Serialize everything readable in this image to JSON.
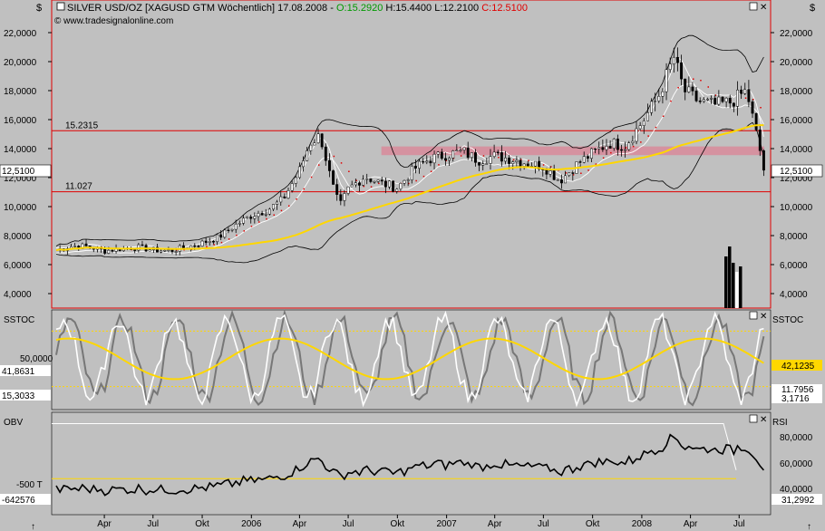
{
  "header": {
    "symbol": "SILVER USD/OZ [XAGUSD GTM",
    "period": "Wöchentlich]",
    "date": "17.08.2008",
    "open": "O:15.2920",
    "high": "H:15.4400",
    "low": "L:12.2100",
    "close": "C:12.5100",
    "copyright": "© www.tradesignalonline.com",
    "currency_left": "$",
    "currency_right": "$"
  },
  "colors": {
    "background": "#c0c0c0",
    "price_line": "#ffd700",
    "level_line": "#e00000",
    "resistance_zone": "#d88a9a",
    "open_value": "#009900",
    "close_value": "#e00000",
    "band": "#000000",
    "white_series": "#ffffff"
  },
  "chart_data": [
    {
      "type": "candlestick",
      "name": "price",
      "y_ticks": [
        "22,0000",
        "20,0000",
        "18,0000",
        "16,0000",
        "14,0000",
        "12,0000",
        "10,0000",
        "8,0000",
        "6,0000",
        "4,0000"
      ],
      "ylim": [
        3000,
        23000
      ],
      "current_value_label": "12,5100",
      "levels": [
        {
          "label": "15.2315",
          "value": 15.2315
        },
        {
          "label": "11.027",
          "value": 11.027
        }
      ],
      "zone": {
        "from_date": "2006-09-01",
        "to_date": "2008-08-17",
        "low": 13.55,
        "high": 14.15
      },
      "x_start": "2005-01-01",
      "x_end": "2008-08-17",
      "weekly_close": [
        {
          "date": "2005-01-01",
          "value": 7.0
        },
        {
          "date": "2005-02-01",
          "value": 7.3
        },
        {
          "date": "2005-03-01",
          "value": 7.25
        },
        {
          "date": "2005-04-01",
          "value": 6.95
        },
        {
          "date": "2005-05-01",
          "value": 7.1
        },
        {
          "date": "2005-06-01",
          "value": 7.2
        },
        {
          "date": "2005-07-01",
          "value": 7.0
        },
        {
          "date": "2005-08-01",
          "value": 6.95
        },
        {
          "date": "2005-09-01",
          "value": 7.2
        },
        {
          "date": "2005-10-01",
          "value": 7.5
        },
        {
          "date": "2005-11-01",
          "value": 7.9
        },
        {
          "date": "2005-12-01",
          "value": 8.7
        },
        {
          "date": "2006-01-01",
          "value": 9.4
        },
        {
          "date": "2006-02-01",
          "value": 9.8
        },
        {
          "date": "2006-03-01",
          "value": 10.5
        },
        {
          "date": "2006-04-01",
          "value": 12.5
        },
        {
          "date": "2006-04-20",
          "value": 14.4
        },
        {
          "date": "2006-05-10",
          "value": 14.9
        },
        {
          "date": "2006-06-01",
          "value": 11.5
        },
        {
          "date": "2006-06-15",
          "value": 10.0
        },
        {
          "date": "2006-07-01",
          "value": 11.2
        },
        {
          "date": "2006-08-01",
          "value": 12.1
        },
        {
          "date": "2006-09-01",
          "value": 11.6
        },
        {
          "date": "2006-10-01",
          "value": 11.3
        },
        {
          "date": "2006-11-01",
          "value": 12.6
        },
        {
          "date": "2006-12-01",
          "value": 13.3
        },
        {
          "date": "2007-01-01",
          "value": 13.6
        },
        {
          "date": "2007-02-01",
          "value": 13.8
        },
        {
          "date": "2007-03-01",
          "value": 13.2
        },
        {
          "date": "2007-04-01",
          "value": 13.5
        },
        {
          "date": "2007-05-01",
          "value": 13.3
        },
        {
          "date": "2007-06-01",
          "value": 13.0
        },
        {
          "date": "2007-07-01",
          "value": 12.8
        },
        {
          "date": "2007-08-01",
          "value": 11.8
        },
        {
          "date": "2007-09-01",
          "value": 12.9
        },
        {
          "date": "2007-10-01",
          "value": 13.7
        },
        {
          "date": "2007-11-01",
          "value": 14.4
        },
        {
          "date": "2007-12-01",
          "value": 14.2
        },
        {
          "date": "2008-01-01",
          "value": 15.8
        },
        {
          "date": "2008-02-01",
          "value": 17.6
        },
        {
          "date": "2008-03-01",
          "value": 20.3
        },
        {
          "date": "2008-03-20",
          "value": 18.0
        },
        {
          "date": "2008-04-15",
          "value": 17.3
        },
        {
          "date": "2008-05-15",
          "value": 17.0
        },
        {
          "date": "2008-06-15",
          "value": 17.2
        },
        {
          "date": "2008-07-15",
          "value": 18.0
        },
        {
          "date": "2008-08-01",
          "value": 15.2
        },
        {
          "date": "2008-08-17",
          "value": 12.51
        }
      ]
    },
    {
      "type": "line",
      "name": "SSTOC",
      "panel_label": "SSTOC",
      "panel_label_right": "SSTOC",
      "y_tick": "50,0000",
      "upper_level": 80,
      "lower_level": 20,
      "value_labels": [
        "41,8631",
        "15,3033",
        "42,1235",
        "11,7956",
        "3,1716"
      ],
      "ylim": [
        0,
        100
      ]
    },
    {
      "type": "line",
      "name": "OBV / RSI",
      "panel_label": "OBV",
      "panel_label_right": "RSI",
      "left_ticks": [
        "-500 T"
      ],
      "left_value": "-642576",
      "right_ticks": [
        "80,0000",
        "60,0000",
        "40,0000"
      ],
      "right_value": "31,2992",
      "ylim": [
        20,
        100
      ]
    }
  ],
  "xaxis": {
    "labels": [
      {
        "label": "Apr",
        "date": "2005-04-01"
      },
      {
        "label": "Jul",
        "date": "2005-07-01"
      },
      {
        "label": "Okt",
        "date": "2005-10-01"
      },
      {
        "label": "2006",
        "date": "2006-01-01"
      },
      {
        "label": "Apr",
        "date": "2006-04-01"
      },
      {
        "label": "Jul",
        "date": "2006-07-01"
      },
      {
        "label": "Okt",
        "date": "2006-10-01"
      },
      {
        "label": "2007",
        "date": "2007-01-01"
      },
      {
        "label": "Apr",
        "date": "2007-04-01"
      },
      {
        "label": "Jul",
        "date": "2007-07-01"
      },
      {
        "label": "Okt",
        "date": "2007-10-01"
      },
      {
        "label": "2008",
        "date": "2008-01-01"
      },
      {
        "label": "Apr",
        "date": "2008-04-01"
      },
      {
        "label": "Jul",
        "date": "2008-07-01"
      }
    ]
  }
}
